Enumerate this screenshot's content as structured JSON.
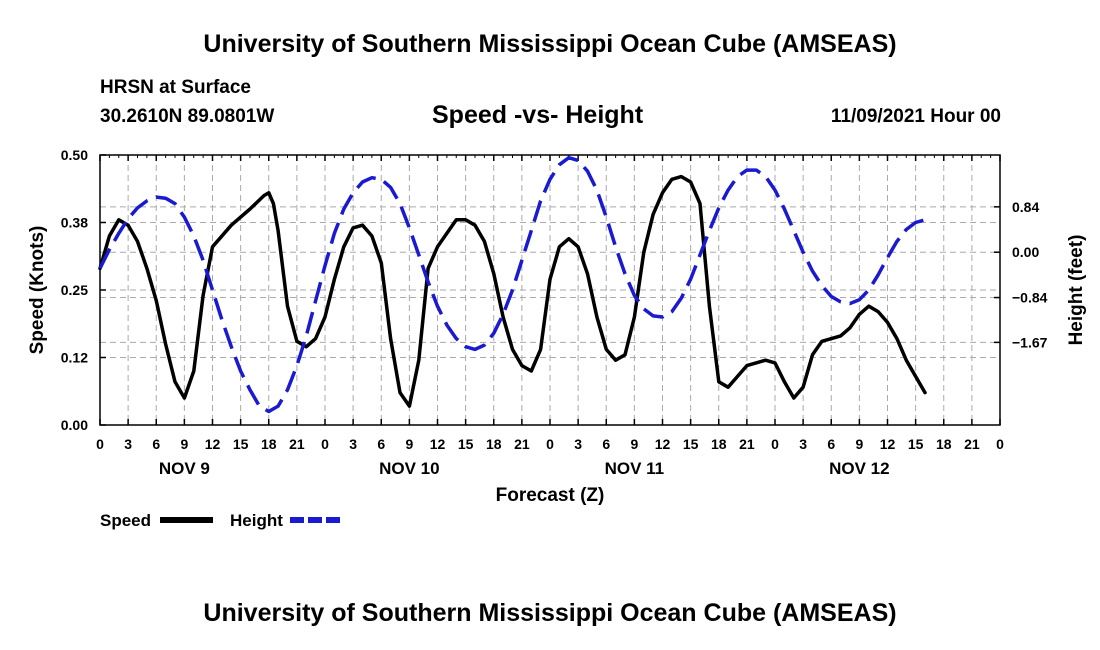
{
  "header": {
    "main_title": "University of Southern Mississippi Ocean Cube (AMSEAS)",
    "station": "HRSN at Surface",
    "coords": "30.2610N  89.0801W",
    "chart_title": "Speed -vs- Height",
    "date": "11/09/2021 Hour 00"
  },
  "footer": {
    "title": "University of Southern Mississippi Ocean Cube (AMSEAS)"
  },
  "colors": {
    "speed": "#000000",
    "height": "#1a1ad0",
    "grid": "#aaaaaa"
  },
  "chart_data": {
    "type": "line",
    "title": "Speed -vs- Height",
    "xlabel": "Forecast (Z)",
    "ylabel": "Speed (Knots)",
    "y2label": "Height (feet)",
    "xlim": [
      0,
      96
    ],
    "ylim": [
      0,
      0.5
    ],
    "y2lim": [
      -3.2,
      1.8
    ],
    "x_tick_labels": [
      "0",
      "3",
      "6",
      "9",
      "12",
      "15",
      "18",
      "21",
      "0",
      "3",
      "6",
      "9",
      "12",
      "15",
      "18",
      "21",
      "0",
      "3",
      "6",
      "9",
      "12",
      "15",
      "18",
      "21",
      "0",
      "3",
      "6",
      "9",
      "12",
      "15",
      "18",
      "21",
      "0"
    ],
    "y_ticks": [
      {
        "value": 0.0,
        "label": "0.00"
      },
      {
        "value": 0.125,
        "label": "0.12"
      },
      {
        "value": 0.25,
        "label": "0.25"
      },
      {
        "value": 0.375,
        "label": "0.38"
      },
      {
        "value": 0.5,
        "label": "0.50"
      }
    ],
    "y2_ticks": [
      {
        "value": 0.84,
        "label": "0.84"
      },
      {
        "value": 0.0,
        "label": "0.00"
      },
      {
        "value": -0.84,
        "label": "−0.84"
      },
      {
        "value": -1.67,
        "label": "−1.67"
      }
    ],
    "day_labels": [
      {
        "x": 9,
        "label": "NOV 9"
      },
      {
        "x": 33,
        "label": "NOV 10"
      },
      {
        "x": 57,
        "label": "NOV 11"
      },
      {
        "x": 81,
        "label": "NOV 12"
      }
    ],
    "legend": [
      {
        "name": "Speed",
        "style": "solid"
      },
      {
        "name": "Height",
        "style": "dashed"
      }
    ],
    "series": [
      {
        "name": "Speed",
        "axis": "left",
        "style": "solid",
        "points": [
          [
            0,
            0.29
          ],
          [
            1,
            0.35
          ],
          [
            2,
            0.38
          ],
          [
            3,
            0.37
          ],
          [
            4,
            0.34
          ],
          [
            5,
            0.29
          ],
          [
            6,
            0.23
          ],
          [
            7,
            0.15
          ],
          [
            8,
            0.08
          ],
          [
            9,
            0.05
          ],
          [
            10,
            0.1
          ],
          [
            11,
            0.24
          ],
          [
            12,
            0.33
          ],
          [
            14,
            0.37
          ],
          [
            16,
            0.4
          ],
          [
            17.5,
            0.425
          ],
          [
            18,
            0.43
          ],
          [
            18.5,
            0.41
          ],
          [
            19,
            0.36
          ],
          [
            20,
            0.22
          ],
          [
            21,
            0.155
          ],
          [
            22,
            0.145
          ],
          [
            23,
            0.16
          ],
          [
            24,
            0.2
          ],
          [
            25,
            0.27
          ],
          [
            26,
            0.33
          ],
          [
            27,
            0.365
          ],
          [
            28,
            0.37
          ],
          [
            29,
            0.35
          ],
          [
            30,
            0.3
          ],
          [
            31,
            0.16
          ],
          [
            32,
            0.06
          ],
          [
            33,
            0.035
          ],
          [
            34,
            0.12
          ],
          [
            35,
            0.29
          ],
          [
            36,
            0.33
          ],
          [
            38,
            0.38
          ],
          [
            39,
            0.38
          ],
          [
            40,
            0.37
          ],
          [
            41,
            0.34
          ],
          [
            42,
            0.28
          ],
          [
            43,
            0.2
          ],
          [
            44,
            0.14
          ],
          [
            45,
            0.11
          ],
          [
            46,
            0.1
          ],
          [
            47,
            0.14
          ],
          [
            48,
            0.27
          ],
          [
            49,
            0.33
          ],
          [
            50,
            0.345
          ],
          [
            51,
            0.33
          ],
          [
            52,
            0.28
          ],
          [
            53,
            0.2
          ],
          [
            54,
            0.14
          ],
          [
            55,
            0.12
          ],
          [
            56,
            0.13
          ],
          [
            57,
            0.2
          ],
          [
            58,
            0.32
          ],
          [
            59,
            0.39
          ],
          [
            60,
            0.43
          ],
          [
            61,
            0.455
          ],
          [
            62,
            0.46
          ],
          [
            63,
            0.45
          ],
          [
            64,
            0.41
          ],
          [
            65,
            0.22
          ],
          [
            66,
            0.08
          ],
          [
            67,
            0.07
          ],
          [
            68,
            0.09
          ],
          [
            69,
            0.11
          ],
          [
            71,
            0.12
          ],
          [
            72,
            0.115
          ],
          [
            73,
            0.08
          ],
          [
            74,
            0.05
          ],
          [
            75,
            0.07
          ],
          [
            76,
            0.13
          ],
          [
            77,
            0.155
          ],
          [
            79,
            0.165
          ],
          [
            80,
            0.18
          ],
          [
            81,
            0.205
          ],
          [
            82,
            0.22
          ],
          [
            83,
            0.21
          ],
          [
            84,
            0.19
          ],
          [
            85,
            0.16
          ],
          [
            86,
            0.12
          ],
          [
            87,
            0.09
          ],
          [
            88,
            0.06
          ]
        ]
      },
      {
        "name": "Height",
        "axis": "right",
        "style": "dashed",
        "points": [
          [
            0,
            -0.3
          ],
          [
            1,
            0.05
          ],
          [
            2,
            0.35
          ],
          [
            3,
            0.62
          ],
          [
            4,
            0.82
          ],
          [
            5,
            0.95
          ],
          [
            6,
            1.02
          ],
          [
            7,
            1.0
          ],
          [
            8,
            0.9
          ],
          [
            9,
            0.65
          ],
          [
            10,
            0.3
          ],
          [
            11,
            -0.15
          ],
          [
            12,
            -0.7
          ],
          [
            13,
            -1.25
          ],
          [
            14,
            -1.75
          ],
          [
            15,
            -2.2
          ],
          [
            16,
            -2.55
          ],
          [
            17,
            -2.85
          ],
          [
            18,
            -2.95
          ],
          [
            19,
            -2.85
          ],
          [
            20,
            -2.55
          ],
          [
            21,
            -2.1
          ],
          [
            22,
            -1.55
          ],
          [
            23,
            -0.9
          ],
          [
            24,
            -0.25
          ],
          [
            25,
            0.35
          ],
          [
            26,
            0.8
          ],
          [
            27,
            1.1
          ],
          [
            28,
            1.3
          ],
          [
            29,
            1.38
          ],
          [
            30,
            1.35
          ],
          [
            31,
            1.2
          ],
          [
            32,
            0.9
          ],
          [
            33,
            0.45
          ],
          [
            34,
            -0.05
          ],
          [
            35,
            -0.55
          ],
          [
            36,
            -1.0
          ],
          [
            37,
            -1.35
          ],
          [
            38,
            -1.6
          ],
          [
            39,
            -1.75
          ],
          [
            40,
            -1.8
          ],
          [
            41,
            -1.72
          ],
          [
            42,
            -1.5
          ],
          [
            43,
            -1.15
          ],
          [
            44,
            -0.7
          ],
          [
            45,
            -0.15
          ],
          [
            46,
            0.4
          ],
          [
            47,
            0.95
          ],
          [
            48,
            1.35
          ],
          [
            49,
            1.62
          ],
          [
            50,
            1.75
          ],
          [
            51,
            1.7
          ],
          [
            52,
            1.5
          ],
          [
            53,
            1.15
          ],
          [
            54,
            0.65
          ],
          [
            55,
            0.1
          ],
          [
            56,
            -0.4
          ],
          [
            57,
            -0.8
          ],
          [
            58,
            -1.05
          ],
          [
            59,
            -1.18
          ],
          [
            60,
            -1.2
          ],
          [
            61,
            -1.1
          ],
          [
            62,
            -0.85
          ],
          [
            63,
            -0.5
          ],
          [
            64,
            -0.05
          ],
          [
            65,
            0.4
          ],
          [
            66,
            0.82
          ],
          [
            67,
            1.15
          ],
          [
            68,
            1.4
          ],
          [
            69,
            1.52
          ],
          [
            70,
            1.52
          ],
          [
            71,
            1.4
          ],
          [
            72,
            1.15
          ],
          [
            73,
            0.8
          ],
          [
            74,
            0.4
          ],
          [
            75,
            0.0
          ],
          [
            76,
            -0.35
          ],
          [
            77,
            -0.62
          ],
          [
            78,
            -0.82
          ],
          [
            79,
            -0.92
          ],
          [
            80,
            -0.95
          ],
          [
            81,
            -0.88
          ],
          [
            82,
            -0.7
          ],
          [
            83,
            -0.42
          ],
          [
            84,
            -0.1
          ],
          [
            85,
            0.2
          ],
          [
            86,
            0.42
          ],
          [
            87,
            0.55
          ],
          [
            88,
            0.6
          ]
        ]
      }
    ]
  }
}
